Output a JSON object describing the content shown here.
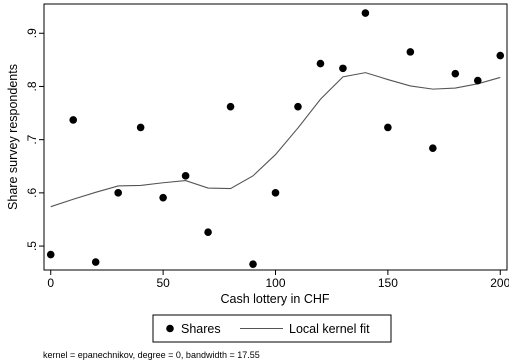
{
  "chart_data": {
    "type": "scatter",
    "title": "",
    "xlabel": "Cash lottery in CHF",
    "ylabel": "Share survey respondents",
    "xlim": [
      -3,
      203
    ],
    "ylim": [
      0.455,
      0.955
    ],
    "x_ticks": [
      0,
      50,
      100,
      150,
      200
    ],
    "x_tick_labels": [
      "0",
      "50",
      "100",
      "150",
      "200"
    ],
    "y_ticks": [
      0.5,
      0.6,
      0.7,
      0.8,
      0.9
    ],
    "y_tick_labels": [
      ".5",
      ".6",
      ".7",
      ".8",
      ".9"
    ],
    "grid": false,
    "legend_position": "bottom",
    "series": [
      {
        "name": "Shares",
        "kind": "scatter",
        "color": "#000000",
        "x": [
          0,
          10,
          20,
          30,
          40,
          50,
          60,
          70,
          80,
          90,
          100,
          110,
          120,
          130,
          140,
          150,
          160,
          170,
          180,
          190,
          200
        ],
        "y": [
          0.484,
          0.737,
          0.47,
          0.6,
          0.723,
          0.591,
          0.632,
          0.526,
          0.762,
          0.466,
          0.6,
          0.762,
          0.843,
          0.834,
          0.938,
          0.723,
          0.865,
          0.684,
          0.824,
          0.811,
          0.858
        ]
      },
      {
        "name": "Local kernel fit",
        "kind": "line",
        "color": "#555555",
        "x": [
          0,
          10,
          20,
          30,
          40,
          50,
          60,
          70,
          80,
          90,
          100,
          110,
          120,
          130,
          140,
          150,
          160,
          170,
          180,
          190,
          200
        ],
        "y": [
          0.574,
          0.588,
          0.601,
          0.613,
          0.614,
          0.619,
          0.623,
          0.609,
          0.608,
          0.632,
          0.672,
          0.722,
          0.776,
          0.818,
          0.826,
          0.813,
          0.801,
          0.795,
          0.797,
          0.805,
          0.817
        ]
      }
    ],
    "note": "kernel = epanechnikov, degree = 0, bandwidth = 17.55"
  }
}
